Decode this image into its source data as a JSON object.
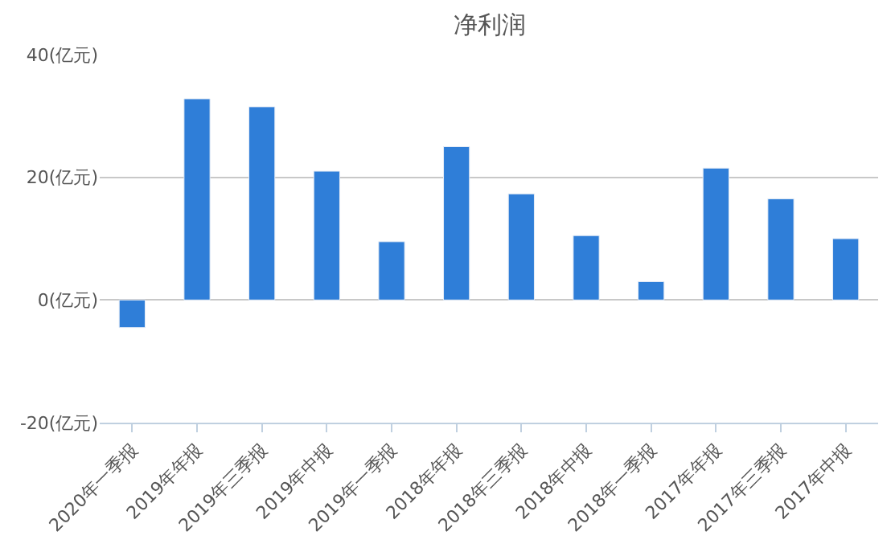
{
  "chart_data": {
    "type": "bar",
    "title": "净利润",
    "categories": [
      "2020年一季报",
      "2019年年报",
      "2019年三季报",
      "2019年中报",
      "2019年一季报",
      "2018年年报",
      "2018年三季报",
      "2018年中报",
      "2018年一季报",
      "2017年年报",
      "2017年三季报",
      "2017年中报"
    ],
    "values": [
      -4.5,
      32.8,
      31.5,
      21,
      9.5,
      25,
      17.3,
      10.5,
      3,
      21.5,
      16.5,
      10
    ],
    "color": "#2f7ed8",
    "ylim": [
      -20,
      40
    ],
    "yticks": [
      {
        "value": -20,
        "label": "-20(亿元)"
      },
      {
        "value": 0,
        "label": "0(亿元)"
      },
      {
        "value": 20,
        "label": "20(亿元)"
      },
      {
        "value": 40,
        "label": "40(亿元)"
      }
    ],
    "grid": "y"
  }
}
